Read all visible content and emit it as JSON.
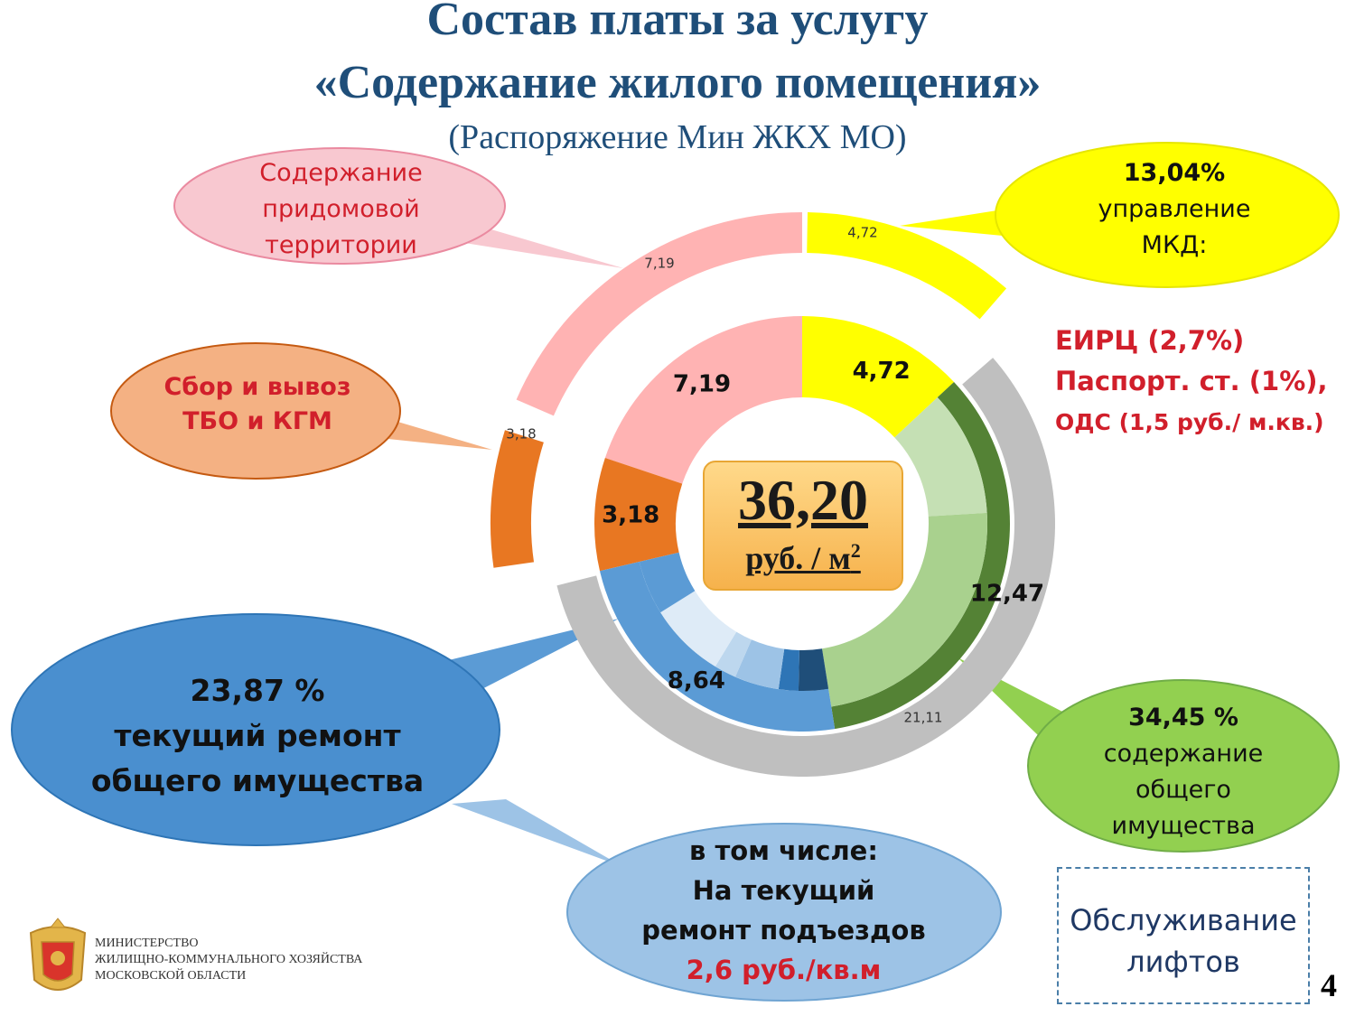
{
  "title": {
    "line1": "Состав платы за услугу",
    "line2": "«Содержание жилого помещения»",
    "subtitle": "(Распоряжение Мин ЖКХ МО)"
  },
  "center": {
    "value": "36,20",
    "unit": "руб. / м",
    "unit_sup": "2"
  },
  "colors": {
    "management": "#ffff00",
    "maintenance_dark": "#548235",
    "maintenance_mid": "#a9d18e",
    "maintenance_light": "#c5e0b4",
    "repair_main": "#5b9bd5",
    "repair_light": "#deebf7",
    "repair_mid": "#bdd7ee",
    "repair_mid2": "#9dc3e6",
    "repair_dark": "#2e75b6",
    "repair_darkest": "#1f4e79",
    "waste": "#e87722",
    "territory": "#ffb3b3",
    "outer_grey": "#bfbfbf"
  },
  "chart_data": {
    "type": "pie",
    "total": 36.2,
    "inner_ring": [
      {
        "name": "управление МКД",
        "value": 4.72,
        "label": "4,72"
      },
      {
        "name": "содержание общего имущества",
        "value": 12.47,
        "label": "12,47"
      },
      {
        "name": "текущий ремонт общего имущества",
        "value": 8.64,
        "label": "8,64"
      },
      {
        "name": "Сбор и вывоз ТБО и КГМ",
        "value": 3.18,
        "label": "3,18"
      },
      {
        "name": "Содержание придомовой территории",
        "value": 7.19,
        "label": "7,19"
      }
    ],
    "outer_labels": {
      "management": "4,72",
      "territory": "7,19",
      "waste": "3,18",
      "grey_total": "21,11"
    }
  },
  "callouts": {
    "territory": "Содержание придомовой территории",
    "waste": "Сбор и вывоз ТБО и КГМ",
    "management_pct": "13,04%",
    "management_name": "управление МКД:",
    "repair_pct": "23,87 %",
    "repair_name": "текущий ремонт общего имущества",
    "maintenance_pct": "34,45 %",
    "maintenance_name": "содержание общего имущества",
    "entrance_line1": "в том числе:",
    "entrance_line2": "На текущий ремонт подъездов",
    "entrance_value": "2,6 руб./кв.м"
  },
  "notes": {
    "line1": "ЕИРЦ (2,7%)",
    "line2": "Паспорт. ст. (1%),",
    "line3": "ОДС (1,5 руб./ м.кв.)"
  },
  "lift_box": "Обслуживание лифтов",
  "ministry": {
    "line1": "МИНИСТЕРСТВО",
    "line2": "ЖИЛИЩНО-КОММУНАЛЬНОГО ХОЗЯЙСТВА",
    "line3": "МОСКОВСКОЙ ОБЛАСТИ"
  },
  "page_number": "4"
}
